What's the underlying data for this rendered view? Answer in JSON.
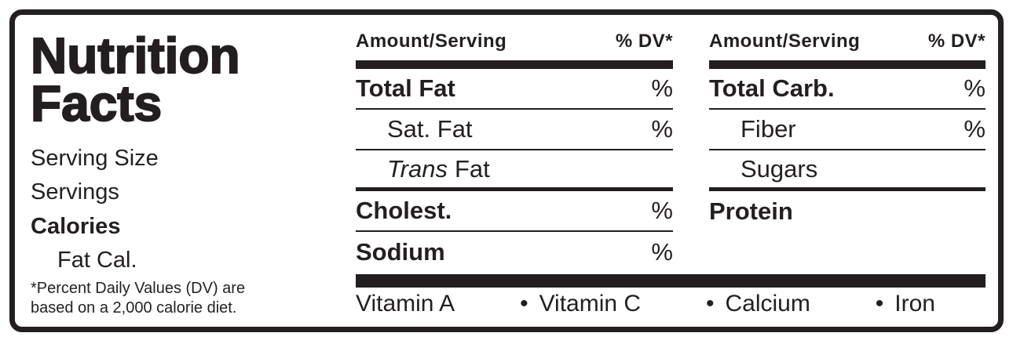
{
  "left": {
    "title_line1": "Nutrition",
    "title_line2": "Facts",
    "serving_size_label": "Serving Size",
    "servings_label": "Servings",
    "calories_label": "Calories",
    "fat_cal_label": "Fat Cal.",
    "footnote_line1": "*Percent Daily Values (DV) are",
    "footnote_line2": "based on a 2,000 calorie diet."
  },
  "table": {
    "left_column": {
      "header": {
        "amount": "Amount/Serving",
        "dv": "% DV*"
      },
      "rows": [
        {
          "name": "Total Fat",
          "dv": "%"
        },
        {
          "name": "Sat. Fat",
          "dv": "%"
        },
        {
          "name_italic": "Trans",
          "name_rest": "Fat",
          "dv": ""
        },
        {
          "name": "Cholest.",
          "dv": "%"
        },
        {
          "name": "Sodium",
          "dv": "%"
        }
      ]
    },
    "right_column": {
      "header": {
        "amount": "Amount/Serving",
        "dv": "% DV*"
      },
      "rows": [
        {
          "name": "Total Carb.",
          "dv": "%"
        },
        {
          "name": "Fiber",
          "dv": "%"
        },
        {
          "name": "Sugars",
          "dv": ""
        },
        {
          "name": "Protein",
          "dv": ""
        }
      ]
    }
  },
  "vitamins": {
    "bullet": "•",
    "items": [
      "Vitamin A",
      "Vitamin C",
      "Calcium",
      "Iron"
    ]
  },
  "colors": {
    "ink": "#231f20",
    "background": "#ffffff"
  }
}
